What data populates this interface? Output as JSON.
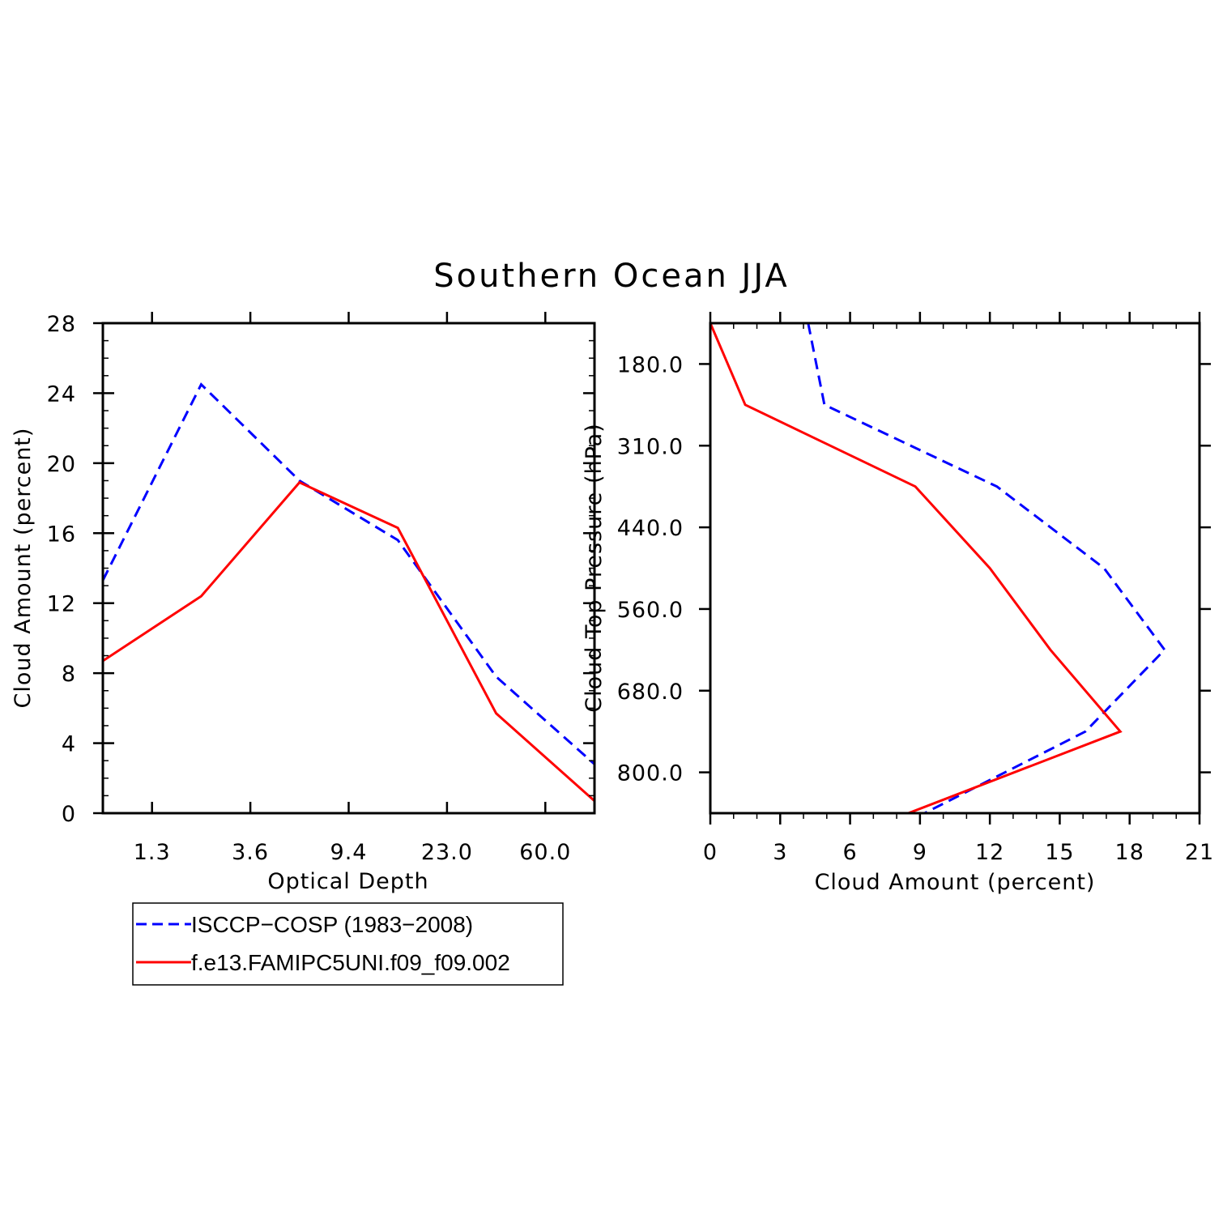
{
  "figure": {
    "title": "Southern Ocean JJA",
    "colors": {
      "obs": "#0000ff",
      "model": "#ff0000",
      "axis": "#000000"
    }
  },
  "legend": {
    "entries": [
      {
        "label": "ISCCP−COSP (1983−2008)",
        "color": "#0000ff",
        "dash": true
      },
      {
        "label": "f.e13.FAMIPC5UNI.f09_f09.002",
        "color": "#ff0000",
        "dash": false
      }
    ]
  },
  "chart_data": [
    {
      "type": "line",
      "xlabel": "Optical Depth",
      "ylabel": "Cloud Amount (percent)",
      "xticklabels": [
        "1.3",
        "3.6",
        "9.4",
        "23.0",
        "60.0"
      ],
      "ylim": [
        0,
        28
      ],
      "yticks": [
        0,
        4,
        8,
        12,
        16,
        20,
        24,
        28
      ],
      "x": [
        0.3,
        1.3,
        2.3,
        3.6,
        5.8,
        9.4,
        15.0,
        23.0,
        41.0,
        60.0,
        379.0
      ],
      "series": [
        {
          "name": "ISCCP−COSP (1983−2008)",
          "color": "#0000ff",
          "dash": true,
          "points": [
            {
              "x": 0.3,
              "y": 13.3
            },
            {
              "x": 2.3,
              "y": 24.5
            },
            {
              "x": 5.8,
              "y": 19.0
            },
            {
              "x": 15.0,
              "y": 15.6
            },
            {
              "x": 41.0,
              "y": 7.8
            },
            {
              "x": 379.0,
              "y": 2.8
            }
          ]
        },
        {
          "name": "f.e13.FAMIPC5UNI.f09_f09.002",
          "color": "#ff0000",
          "dash": false,
          "points": [
            {
              "x": 0.3,
              "y": 8.7
            },
            {
              "x": 2.3,
              "y": 12.4
            },
            {
              "x": 5.8,
              "y": 18.9
            },
            {
              "x": 15.0,
              "y": 16.3
            },
            {
              "x": 41.0,
              "y": 5.7
            },
            {
              "x": 379.0,
              "y": 0.7
            }
          ]
        }
      ]
    },
    {
      "type": "line",
      "xlabel": "Cloud Amount (percent)",
      "ylabel": "Cloud Top Pressure (hPa)",
      "xlim": [
        0,
        21
      ],
      "xticks": [
        0,
        3,
        6,
        9,
        12,
        15,
        18,
        21
      ],
      "yticklabels": [
        "180.0",
        "310.0",
        "440.0",
        "560.0",
        "680.0",
        "800.0"
      ],
      "y": [
        50,
        180,
        245,
        310,
        375,
        440,
        500,
        560,
        620,
        680,
        740,
        800,
        1000
      ],
      "y_direction": "pressure increases downward",
      "series": [
        {
          "name": "ISCCP−COSP (1983−2008)",
          "color": "#0000ff",
          "dash": true,
          "points": [
            {
              "x": 4.2,
              "y": 50
            },
            {
              "x": 4.9,
              "y": 245
            },
            {
              "x": 12.3,
              "y": 375
            },
            {
              "x": 16.9,
              "y": 500
            },
            {
              "x": 19.5,
              "y": 620
            },
            {
              "x": 16.1,
              "y": 740
            },
            {
              "x": 9.2,
              "y": 1000
            }
          ]
        },
        {
          "name": "f.e13.FAMIPC5UNI.f09_f09.002",
          "color": "#ff0000",
          "dash": false,
          "points": [
            {
              "x": 0.0,
              "y": 50
            },
            {
              "x": 1.5,
              "y": 245
            },
            {
              "x": 8.8,
              "y": 375
            },
            {
              "x": 12.0,
              "y": 500
            },
            {
              "x": 14.6,
              "y": 620
            },
            {
              "x": 17.6,
              "y": 740
            },
            {
              "x": 8.5,
              "y": 1000
            }
          ]
        }
      ]
    }
  ]
}
